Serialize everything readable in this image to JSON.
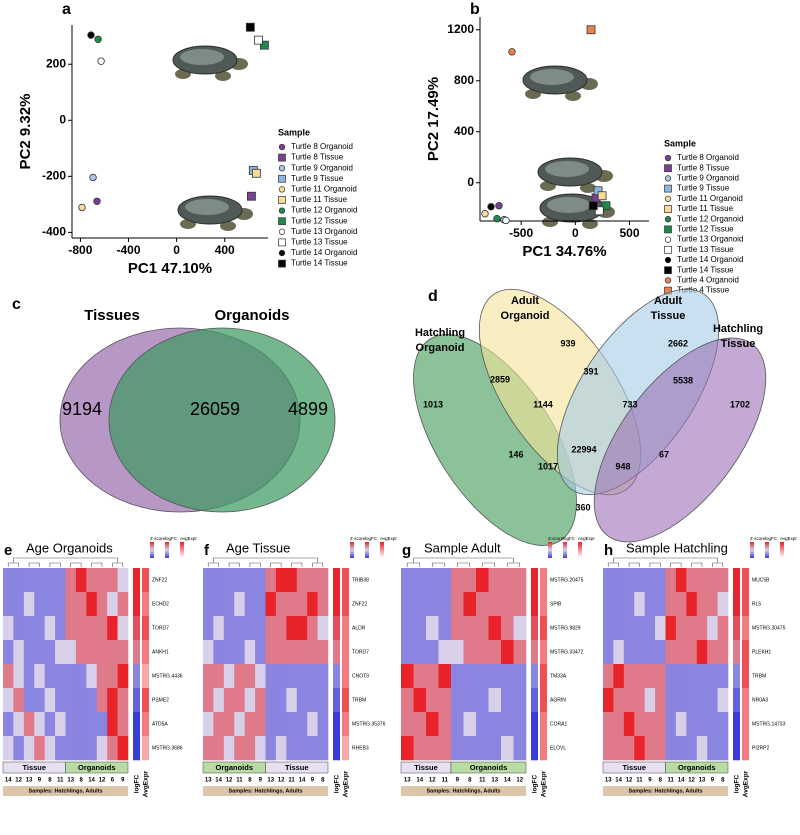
{
  "chart_data": [
    {
      "type": "scatter",
      "label": "a",
      "xlabel": "PC1 47.10%",
      "ylabel": "PC2 9.32%",
      "xlim": [
        -870,
        760
      ],
      "ylim": [
        -420,
        340
      ],
      "xticks": [
        -800,
        -400,
        0,
        400
      ],
      "yticks": [
        -400,
        -200,
        0,
        200
      ],
      "legend_title": "Sample",
      "series": [
        {
          "name": "Turtle 8 Organoid",
          "color": "#7b3f98",
          "marker": "circle",
          "x": [
            -662
          ],
          "y": [
            -289
          ]
        },
        {
          "name": "Turtle 8 Tissue",
          "color": "#7b3f98",
          "marker": "square",
          "x": [
            622
          ],
          "y": [
            -271
          ]
        },
        {
          "name": "Turtle 9 Organoid",
          "color": "#a9c8e8",
          "marker": "circle",
          "x": [
            -695
          ],
          "y": [
            -204
          ]
        },
        {
          "name": "Turtle 9 Tissue",
          "color": "#8fb6de",
          "marker": "square",
          "x": [
            638
          ],
          "y": [
            -179
          ]
        },
        {
          "name": "Turtle 11 Organoid",
          "color": "#f6dc9a",
          "marker": "circle",
          "x": [
            -787
          ],
          "y": [
            -311
          ]
        },
        {
          "name": "Turtle 11 Tissue",
          "color": "#f6dc9a",
          "marker": "square",
          "x": [
            663
          ],
          "y": [
            -189
          ]
        },
        {
          "name": "Turtle 12 Organoid",
          "color": "#1e8a4a",
          "marker": "circle",
          "x": [
            -653
          ],
          "y": [
            289
          ]
        },
        {
          "name": "Turtle 12 Tissue",
          "color": "#1e8a4a",
          "marker": "square",
          "x": [
            730
          ],
          "y": [
            268
          ]
        },
        {
          "name": "Turtle 13 Organoid",
          "color": "#ffffff",
          "marker": "circle",
          "x": [
            -628
          ],
          "y": [
            211
          ]
        },
        {
          "name": "Turtle 13 Tissue",
          "color": "#ffffff",
          "marker": "square",
          "x": [
            680
          ],
          "y": [
            286
          ]
        },
        {
          "name": "Turtle 14 Organoid",
          "color": "#000000",
          "marker": "circle",
          "x": [
            -712
          ],
          "y": [
            304
          ]
        },
        {
          "name": "Turtle 14 Tissue",
          "color": "#000000",
          "marker": "square",
          "x": [
            613
          ],
          "y": [
            332
          ]
        }
      ]
    },
    {
      "type": "scatter",
      "label": "b",
      "xlabel": "PC1 34.76%",
      "ylabel": "PC2 17.49%",
      "xlim": [
        -880,
        680
      ],
      "ylim": [
        -300,
        1300
      ],
      "xticks": [
        -500,
        0,
        500
      ],
      "yticks": [
        0,
        400,
        800,
        1200
      ],
      "legend_title": "Sample",
      "series": [
        {
          "name": "Turtle 8 Organoid",
          "color": "#7b3f98",
          "marker": "circle",
          "x": [
            -705
          ],
          "y": [
            -180
          ]
        },
        {
          "name": "Turtle 8 Tissue",
          "color": "#7b3f98",
          "marker": "square",
          "x": [
            191
          ],
          "y": [
            -118
          ]
        },
        {
          "name": "Turtle 9 Organoid",
          "color": "#a9c8e8",
          "marker": "circle",
          "x": [
            -658
          ],
          "y": [
            -290
          ]
        },
        {
          "name": "Turtle 9 Tissue",
          "color": "#8fb6de",
          "marker": "square",
          "x": [
            210
          ],
          "y": [
            -63
          ]
        },
        {
          "name": "Turtle 11 Organoid",
          "color": "#f6dc9a",
          "marker": "circle",
          "x": [
            -834
          ],
          "y": [
            -243
          ]
        },
        {
          "name": "Turtle 11 Tissue",
          "color": "#f6dc9a",
          "marker": "square",
          "x": [
            247
          ],
          "y": [
            -102
          ]
        },
        {
          "name": "Turtle 12 Organoid",
          "color": "#1e8a4a",
          "marker": "circle",
          "x": [
            -723
          ],
          "y": [
            -282
          ]
        },
        {
          "name": "Turtle 12 Tissue",
          "color": "#1e8a4a",
          "marker": "square",
          "x": [
            283
          ],
          "y": [
            -180
          ]
        },
        {
          "name": "Turtle 13 Organoid",
          "color": "#ffffff",
          "marker": "circle",
          "x": [
            -640
          ],
          "y": [
            -295
          ]
        },
        {
          "name": "Turtle 13 Tissue",
          "color": "#ffffff",
          "marker": "square",
          "x": [
            221
          ],
          "y": [
            -220
          ]
        },
        {
          "name": "Turtle 14 Organoid",
          "color": "#000000",
          "marker": "circle",
          "x": [
            -778
          ],
          "y": [
            -188
          ]
        },
        {
          "name": "Turtle 14 Tissue",
          "color": "#000000",
          "marker": "square",
          "x": [
            165
          ],
          "y": [
            -180
          ]
        },
        {
          "name": "Turtle 4 Organoid",
          "color": "#e8834a",
          "marker": "circle",
          "x": [
            -585
          ],
          "y": [
            1027
          ]
        },
        {
          "name": "Turtle 4 Tissue",
          "color": "#e8834a",
          "marker": "square",
          "x": [
            145
          ],
          "y": [
            1200
          ]
        }
      ]
    },
    {
      "type": "venn",
      "label": "c",
      "sets": [
        {
          "name": "Tissues",
          "color": "#9a6fb0"
        },
        {
          "name": "Organoids",
          "color": "#3f9a63"
        }
      ],
      "values": [
        9194,
        26059,
        4899
      ]
    },
    {
      "type": "venn",
      "label": "d",
      "sets": [
        {
          "name": "Hatchling Organoid",
          "color": "#3f9a55"
        },
        {
          "name": "Adult Organoid",
          "color": "#f5e39a"
        },
        {
          "name": "Adult Tissue",
          "color": "#a3cbe6"
        },
        {
          "name": "Hatchling Tissue",
          "color": "#9b6fb5"
        }
      ],
      "values": [
        939,
        2662,
        1013,
        2859,
        391,
        5538,
        1702,
        1144,
        733,
        22994,
        146,
        67,
        1017,
        948,
        360
      ]
    },
    {
      "type": "heatmap",
      "label": "e",
      "title": "Age Organoids",
      "legend": [
        "Z-score",
        "logFC",
        "AvgExpr"
      ],
      "footer": "Samples: Hatchlings, Adults",
      "columns": [
        {
          "group": "Tissue",
          "sample": "14"
        },
        {
          "group": "Tissue",
          "sample": "12"
        },
        {
          "group": "Tissue",
          "sample": "13"
        },
        {
          "group": "Tissue",
          "sample": "9"
        },
        {
          "group": "Tissue",
          "sample": "8"
        },
        {
          "group": "Tissue",
          "sample": "11"
        },
        {
          "group": "Organoids",
          "sample": "13"
        },
        {
          "group": "Organoids",
          "sample": "8"
        },
        {
          "group": "Organoids",
          "sample": "14"
        },
        {
          "group": "Organoids",
          "sample": "12"
        },
        {
          "group": "Organoids",
          "sample": "6"
        },
        {
          "group": "Organoids",
          "sample": "9"
        }
      ],
      "genes": [
        "ZNF22",
        "ECHD2",
        "TORD7",
        "ANKH1",
        "MSTRG.4436",
        "PSME2",
        "ATD5A",
        "MSTRG.3686"
      ],
      "zlim": [
        -2,
        2
      ],
      "logfc_lim": [
        -2,
        2
      ],
      "avgexpr_lim": [
        0,
        5
      ],
      "z": [
        [
          -1,
          -1,
          -1,
          -1,
          -1,
          -1,
          1,
          2,
          1,
          1,
          1,
          0
        ],
        [
          -1,
          -1,
          0,
          -1,
          -1,
          -1,
          1,
          1,
          2,
          1,
          0,
          1
        ],
        [
          0,
          -1,
          -1,
          -1,
          0,
          -1,
          1,
          1,
          1,
          1,
          2,
          0
        ],
        [
          -1,
          0,
          -1,
          -1,
          -1,
          0,
          0,
          1,
          1,
          1,
          1,
          1
        ],
        [
          1,
          0,
          -1,
          0,
          -1,
          -1,
          -1,
          -1,
          0,
          1,
          1,
          2
        ],
        [
          0,
          1,
          -1,
          -1,
          0,
          -1,
          -1,
          -1,
          -1,
          1,
          2,
          1
        ],
        [
          -1,
          0,
          1,
          0,
          -1,
          0,
          -1,
          -1,
          -1,
          -1,
          2,
          1
        ],
        [
          0,
          -1,
          0,
          1,
          0,
          -1,
          -1,
          -1,
          -1,
          0,
          1,
          2
        ]
      ],
      "logfc": [
        2,
        2,
        1.5,
        1,
        -1,
        -1.5,
        -2,
        -2
      ],
      "avgexpr": [
        4,
        3,
        4,
        3,
        2,
        4,
        3,
        2
      ]
    },
    {
      "type": "heatmap",
      "label": "f",
      "title": "Age Tissue",
      "legend": [
        "Z-score",
        "logFC",
        "AvgExpr"
      ],
      "footer": "Samples: Hatchlings, Adults",
      "columns": [
        {
          "group": "Organoids",
          "sample": "13"
        },
        {
          "group": "Organoids",
          "sample": "14"
        },
        {
          "group": "Organoids",
          "sample": "12"
        },
        {
          "group": "Organoids",
          "sample": "11"
        },
        {
          "group": "Organoids",
          "sample": "8"
        },
        {
          "group": "Organoids",
          "sample": "9"
        },
        {
          "group": "Tissue",
          "sample": "13"
        },
        {
          "group": "Tissue",
          "sample": "12"
        },
        {
          "group": "Tissue",
          "sample": "11"
        },
        {
          "group": "Tissue",
          "sample": "14"
        },
        {
          "group": "Tissue",
          "sample": "9"
        },
        {
          "group": "Tissue",
          "sample": "8"
        }
      ],
      "genes": [
        "TRIB38",
        "ZNF22",
        "ALDR",
        "TORD7",
        "CNOT9",
        "TRBM",
        "MSTRG.35376",
        "RHEB3"
      ],
      "zlim": [
        -2,
        2
      ],
      "logfc_lim": [
        -2,
        2
      ],
      "avgexpr_lim": [
        0,
        5
      ],
      "z": [
        [
          -1,
          -1,
          -1,
          -1,
          -1,
          -1,
          1,
          2,
          2,
          1,
          1,
          1
        ],
        [
          -1,
          -1,
          -1,
          0,
          -1,
          -1,
          2,
          1,
          1,
          1,
          2,
          1
        ],
        [
          -1,
          0,
          -1,
          -1,
          -1,
          -1,
          1,
          1,
          2,
          2,
          1,
          0
        ],
        [
          0,
          -1,
          -1,
          -1,
          0,
          -1,
          1,
          1,
          1,
          1,
          1,
          1
        ],
        [
          1,
          1,
          0,
          1,
          1,
          0,
          -1,
          -1,
          -1,
          -1,
          -1,
          -1
        ],
        [
          1,
          0,
          1,
          1,
          0,
          1,
          -1,
          -1,
          0,
          -1,
          -1,
          -1
        ],
        [
          0,
          1,
          1,
          0,
          1,
          1,
          -1,
          -1,
          -1,
          -1,
          0,
          -1
        ],
        [
          1,
          1,
          0,
          1,
          1,
          0,
          -1,
          0,
          -1,
          -1,
          -1,
          -1
        ]
      ],
      "logfc": [
        2,
        2,
        1.5,
        1,
        -1,
        -1.5,
        -2,
        -2
      ],
      "avgexpr": [
        4,
        4,
        3,
        3,
        3,
        4,
        3,
        2
      ]
    },
    {
      "type": "heatmap",
      "label": "g",
      "title": "Sample Adult",
      "legend": [
        "Z-score",
        "logFC",
        "AvgExpr"
      ],
      "footer": "Samples: Hatchlings, Adults",
      "columns": [
        {
          "group": "Tissue",
          "sample": "13"
        },
        {
          "group": "Tissue",
          "sample": "14"
        },
        {
          "group": "Tissue",
          "sample": "12"
        },
        {
          "group": "Tissue",
          "sample": "11"
        },
        {
          "group": "Organoids",
          "sample": "9"
        },
        {
          "group": "Organoids",
          "sample": "8"
        },
        {
          "group": "Organoids",
          "sample": "11"
        },
        {
          "group": "Organoids",
          "sample": "13"
        },
        {
          "group": "Organoids",
          "sample": "14"
        },
        {
          "group": "Organoids",
          "sample": "12"
        }
      ],
      "genes": [
        "MSTRG.20475",
        "SPIB",
        "MSTRG.9829",
        "MSTRG.33472",
        "TM33A",
        "AGRIN",
        "CORA1",
        "ELOVL"
      ],
      "zlim": [
        -2,
        2
      ],
      "logfc_lim": [
        -2,
        2
      ],
      "avgexpr_lim": [
        0,
        5
      ],
      "z": [
        [
          -1,
          -1,
          -1,
          -1,
          1,
          1,
          2,
          1,
          1,
          1
        ],
        [
          -1,
          -1,
          -1,
          -1,
          1,
          2,
          1,
          1,
          1,
          1
        ],
        [
          -1,
          -1,
          0,
          -1,
          1,
          1,
          1,
          2,
          1,
          0
        ],
        [
          -1,
          -1,
          -1,
          0,
          0,
          1,
          1,
          1,
          2,
          1
        ],
        [
          2,
          1,
          1,
          2,
          -1,
          -1,
          -1,
          -1,
          -1,
          -1
        ],
        [
          1,
          2,
          1,
          1,
          -1,
          -1,
          -1,
          0,
          -1,
          -1
        ],
        [
          1,
          1,
          2,
          1,
          -1,
          0,
          -1,
          -1,
          -1,
          -1
        ],
        [
          2,
          1,
          1,
          1,
          -1,
          -1,
          -1,
          -1,
          0,
          -1
        ]
      ],
      "logfc": [
        2,
        2,
        1.5,
        1,
        -1,
        -1.5,
        -2,
        -2
      ],
      "avgexpr": [
        3,
        3,
        4,
        3,
        4,
        4,
        3,
        3
      ]
    },
    {
      "type": "heatmap",
      "label": "h",
      "title": "Sample Hatchling",
      "legend": [
        "Z-score",
        "logFC",
        "AvgExpr"
      ],
      "footer": "Samples: Hatchlings, Adults",
      "columns": [
        {
          "group": "Tissue",
          "sample": "13"
        },
        {
          "group": "Tissue",
          "sample": "14"
        },
        {
          "group": "Tissue",
          "sample": "12"
        },
        {
          "group": "Tissue",
          "sample": "11"
        },
        {
          "group": "Tissue",
          "sample": "9"
        },
        {
          "group": "Tissue",
          "sample": "8"
        },
        {
          "group": "Organoids",
          "sample": "11"
        },
        {
          "group": "Organoids",
          "sample": "14"
        },
        {
          "group": "Organoids",
          "sample": "12"
        },
        {
          "group": "Organoids",
          "sample": "13"
        },
        {
          "group": "Organoids",
          "sample": "9"
        },
        {
          "group": "Organoids",
          "sample": "8"
        }
      ],
      "genes": [
        "MUC5B",
        "RL5",
        "MSTRG.30475",
        "PLEKH1",
        "TRBM",
        "NR0A3",
        "MSTRG.14733",
        "PI2RP2"
      ],
      "zlim": [
        -2,
        2
      ],
      "logfc_lim": [
        -2,
        2
      ],
      "avgexpr_lim": [
        0,
        5
      ],
      "z": [
        [
          -1,
          -1,
          -1,
          -1,
          -1,
          -1,
          1,
          2,
          1,
          1,
          1,
          1
        ],
        [
          -1,
          -1,
          -1,
          0,
          -1,
          -1,
          1,
          1,
          2,
          1,
          1,
          0
        ],
        [
          -1,
          -1,
          -1,
          -1,
          -1,
          0,
          2,
          1,
          1,
          1,
          0,
          1
        ],
        [
          -1,
          0,
          -1,
          -1,
          -1,
          -1,
          1,
          1,
          1,
          2,
          1,
          1
        ],
        [
          1,
          2,
          1,
          1,
          1,
          1,
          -1,
          -1,
          -1,
          -1,
          -1,
          -1
        ],
        [
          2,
          1,
          1,
          1,
          0,
          1,
          -1,
          -1,
          -1,
          -1,
          -1,
          0
        ],
        [
          1,
          1,
          2,
          1,
          1,
          1,
          -1,
          0,
          -1,
          -1,
          -1,
          -1
        ],
        [
          1,
          1,
          1,
          2,
          1,
          1,
          -1,
          -1,
          -1,
          0,
          -1,
          -1
        ]
      ],
      "logfc": [
        2,
        2,
        1.5,
        1,
        -1,
        -1.5,
        -2,
        -2
      ],
      "avgexpr": [
        4,
        4,
        3,
        4,
        4,
        3,
        3,
        3
      ]
    }
  ]
}
